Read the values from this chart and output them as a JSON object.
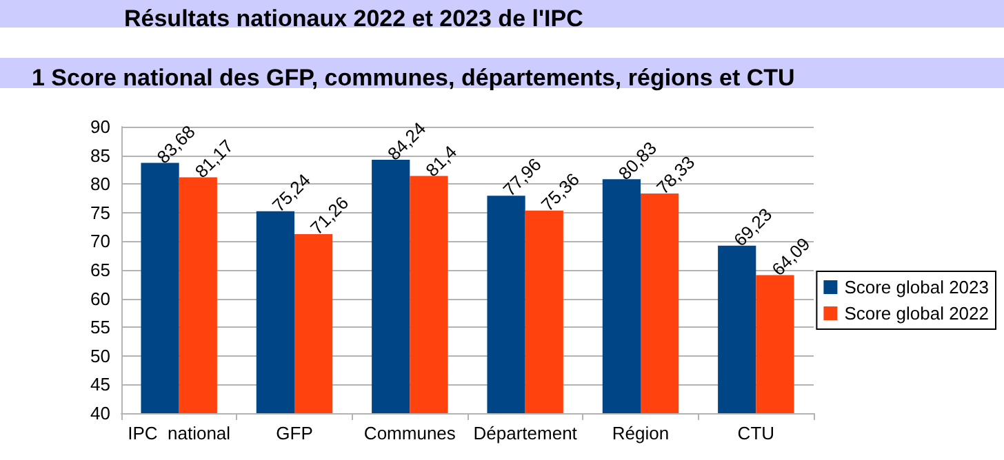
{
  "chart_data": {
    "type": "bar",
    "title": "Résultats nationaux 2022 et 2023 de l'IPC",
    "subtitle": "1 Score national des GFP, communes, départements, régions et CTU",
    "categories": [
      "IPC  national",
      "GFP",
      "Communes",
      "Département",
      "Région",
      "CTU"
    ],
    "series": [
      {
        "name": "Score global 2023",
        "color": "#004586",
        "values": [
          83.68,
          75.24,
          84.24,
          77.96,
          80.83,
          69.23
        ],
        "value_labels": [
          "83,68",
          "75,24",
          "84,24",
          "77,96",
          "80,83",
          "69,23"
        ]
      },
      {
        "name": "Score global 2022",
        "color": "#ff420e",
        "values": [
          81.17,
          71.26,
          81.4,
          75.36,
          78.33,
          64.09
        ],
        "value_labels": [
          "81,17",
          "71,26",
          "81,4",
          "75,36",
          "78,33",
          "64,09"
        ]
      }
    ],
    "ylim": [
      40,
      90
    ],
    "yticks": [
      40,
      45,
      50,
      55,
      60,
      65,
      70,
      75,
      80,
      85,
      90
    ],
    "grid": "y",
    "legend": "right"
  }
}
